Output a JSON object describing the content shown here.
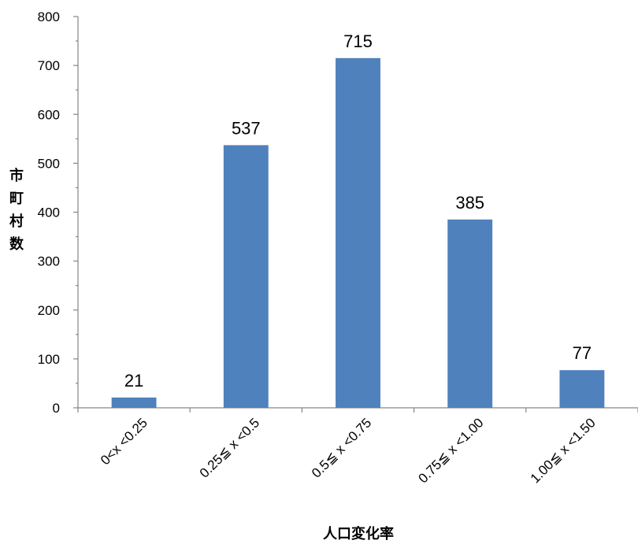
{
  "chart_data": {
    "type": "bar",
    "categories": [
      "0<x <0.25",
      "0.25≦ x <0.5",
      "0.5≦ x <0.75",
      "0.75≦ x <1.00",
      "1.00≦ x <1.50"
    ],
    "values": [
      21,
      537,
      715,
      385,
      77
    ],
    "data_labels": [
      "21",
      "537",
      "715",
      "385",
      "77"
    ],
    "xlabel": "人口変化率",
    "ylabel": "市町村数",
    "ylim": [
      0,
      800
    ],
    "yticks": [
      "0",
      "100",
      "200",
      "300",
      "400",
      "500",
      "600",
      "700",
      "800"
    ],
    "grid": false,
    "legend": "none",
    "bar_color": "#4f81bd"
  }
}
